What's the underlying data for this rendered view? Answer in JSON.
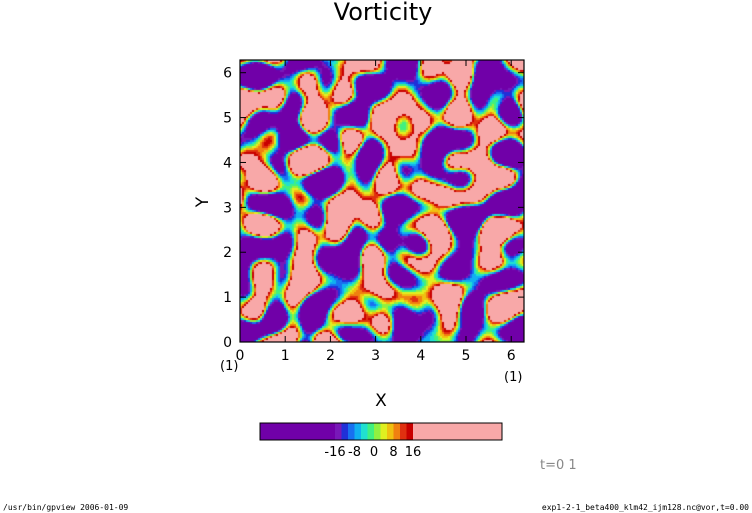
{
  "chart_data": {
    "type": "heatmap",
    "title": "Vorticity",
    "xlabel": "X",
    "ylabel": "Y",
    "xlim": [
      0,
      6.283
    ],
    "ylim": [
      0,
      6.283
    ],
    "x_ticks": [
      "0",
      "1",
      "2",
      "3",
      "4",
      "5",
      "6"
    ],
    "y_ticks": [
      "0",
      "1",
      "2",
      "3",
      "4",
      "5",
      "6"
    ],
    "x_unit_label": "(1)",
    "y_unit_label": "(1)",
    "colorbar_labels": [
      "-16",
      "-8",
      "0",
      "8",
      "16"
    ],
    "colorbar_range": [
      -16,
      16
    ],
    "colors": [
      "#7000a8",
      "#7818b8",
      "#2030d8",
      "#1870f0",
      "#10b0f0",
      "#20e0d0",
      "#40f080",
      "#90f040",
      "#e0f020",
      "#f0c010",
      "#f08010",
      "#e03010",
      "#c80000",
      "#f8a8a8"
    ]
  },
  "time_label": "t=0 1",
  "footer": {
    "left": "/usr/bin/gpview  2006-01-09",
    "right": "exp1-2-1_beta400_klm42_ijm128.nc@vor,t=0.00"
  }
}
